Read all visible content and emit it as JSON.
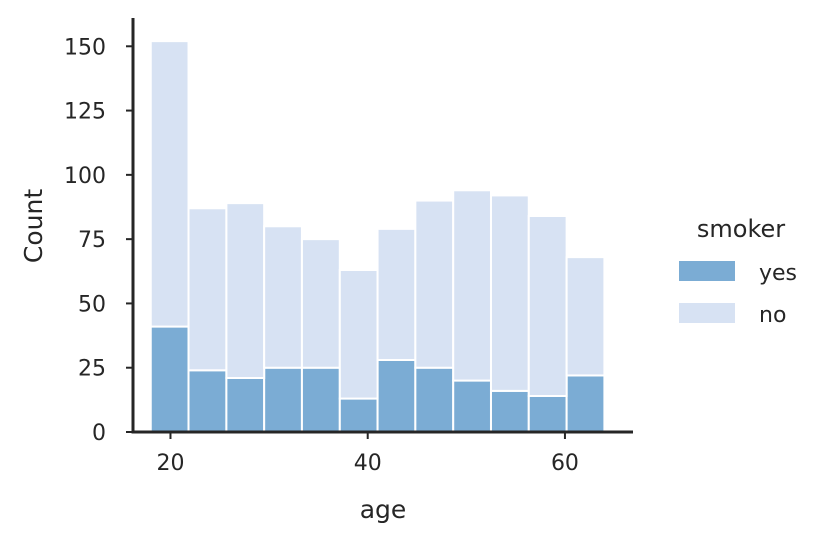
{
  "chart_data": {
    "type": "bar",
    "subtype": "stacked-histogram",
    "title": "",
    "xlabel": "age",
    "ylabel": "Count",
    "xlim": [
      16.2,
      66.9
    ],
    "ylim": [
      0,
      161
    ],
    "x_ticks": [
      20,
      40,
      60
    ],
    "y_ticks": [
      0,
      25,
      50,
      75,
      100,
      125,
      150
    ],
    "bin_edges": [
      18.0,
      21.83,
      25.67,
      29.5,
      33.33,
      37.17,
      41.0,
      44.83,
      48.67,
      52.5,
      56.33,
      60.17,
      64.0
    ],
    "legend": {
      "title": "smoker",
      "position": "right"
    },
    "grid": false,
    "series": [
      {
        "name": "yes",
        "color": "#7bacd4",
        "values": [
          41,
          24,
          21,
          25,
          25,
          13,
          28,
          25,
          20,
          16,
          14,
          22
        ]
      },
      {
        "name": "no",
        "color": "#d7e2f3",
        "values": [
          111,
          63,
          68,
          55,
          50,
          50,
          51,
          65,
          74,
          76,
          70,
          46
        ]
      }
    ]
  }
}
